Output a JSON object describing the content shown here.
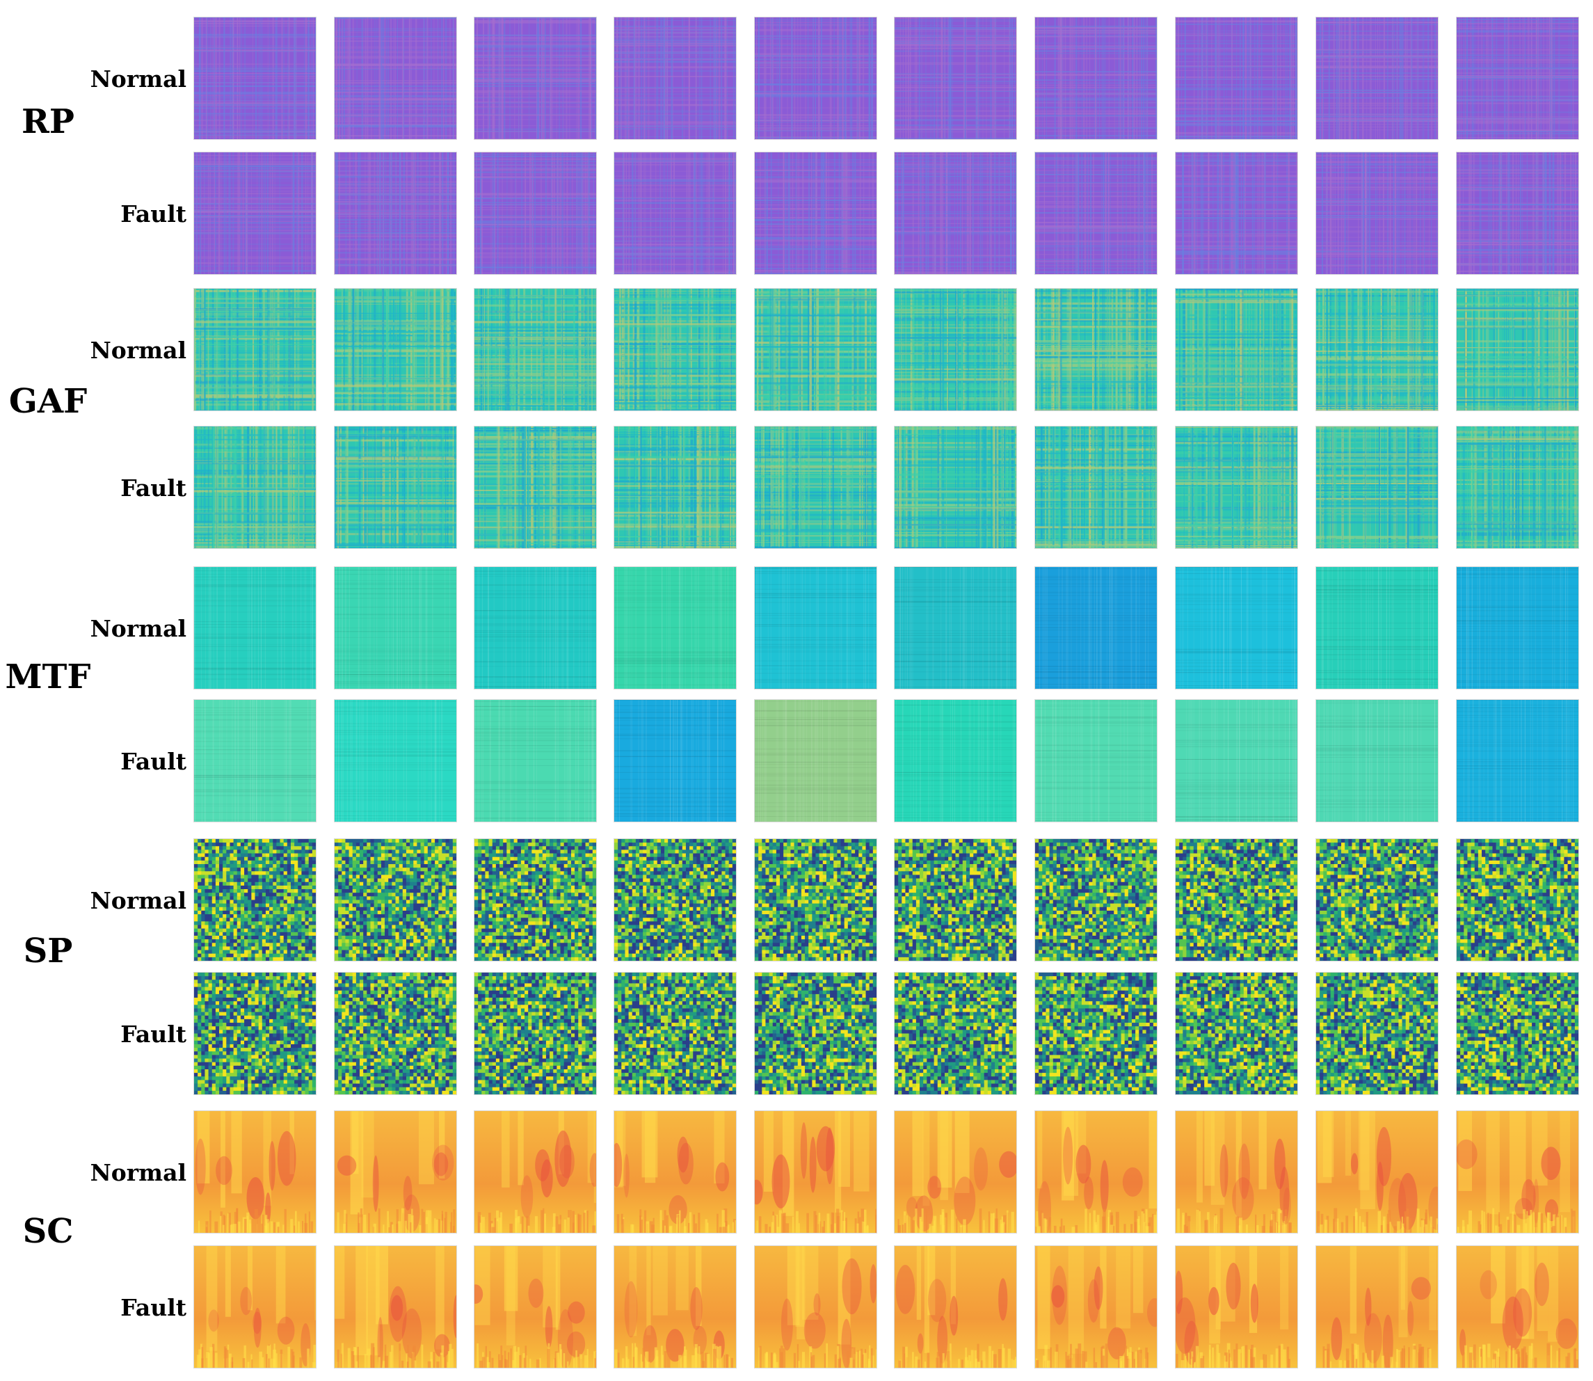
{
  "columns_per_row": 10,
  "methods": [
    {
      "name": "RP",
      "colormap": "purple",
      "texture": "grid",
      "conditions": [
        {
          "label": "Normal",
          "hues": [
            0,
            1,
            2,
            3,
            4,
            5,
            6,
            7,
            8,
            9
          ]
        },
        {
          "label": "Fault",
          "hues": [
            0,
            1,
            2,
            3,
            4,
            5,
            6,
            7,
            8,
            9
          ]
        }
      ]
    },
    {
      "name": "GAF",
      "colormap": "teal-olive",
      "texture": "stripes",
      "conditions": [
        {
          "label": "Normal",
          "hues": [
            0,
            1,
            2,
            3,
            4,
            5,
            6,
            7,
            8,
            9
          ]
        },
        {
          "label": "Fault",
          "hues": [
            0,
            1,
            2,
            3,
            4,
            5,
            6,
            7,
            8,
            9
          ]
        }
      ]
    },
    {
      "name": "MTF",
      "colormap": "cyan-green",
      "texture": "fine",
      "conditions": [
        {
          "label": "Normal",
          "tints": [
            "#27cfbf",
            "#3ad6b3",
            "#22c9c4",
            "#36d6ab",
            "#1fc2d4",
            "#23bfc8",
            "#1a9fdc",
            "#1dc0dc",
            "#27cfb9",
            "#18aedc"
          ]
        },
        {
          "label": "Fault",
          "tints": [
            "#52dcb4",
            "#2bd9c4",
            "#4bdab1",
            "#19aadf",
            "#93cf8c",
            "#27d7b8",
            "#52dbb2",
            "#4fd9b4",
            "#4ed8b3",
            "#1ab1de"
          ]
        }
      ]
    },
    {
      "name": "SP",
      "colormap": "viridis",
      "texture": "pixel",
      "conditions": [
        {
          "label": "Normal",
          "hues": [
            0,
            1,
            2,
            3,
            4,
            5,
            6,
            7,
            8,
            9
          ]
        },
        {
          "label": "Fault",
          "hues": [
            0,
            1,
            2,
            3,
            4,
            5,
            6,
            7,
            8,
            9
          ]
        }
      ]
    },
    {
      "name": "SC",
      "colormap": "orange-yellow",
      "texture": "spectro",
      "conditions": [
        {
          "label": "Normal",
          "hues": [
            0,
            1,
            2,
            3,
            4,
            5,
            6,
            7,
            8,
            9
          ]
        },
        {
          "label": "Fault",
          "hues": [
            0,
            1,
            2,
            3,
            4,
            5,
            6,
            7,
            8,
            9
          ]
        }
      ]
    }
  ],
  "colors": {
    "rp_base": "#8a5ad8",
    "gaf_base": "#29c9b0",
    "mtf_base": "#28cfc0",
    "sp_base": "#1fa56a",
    "sc_base": "#f6a43a"
  }
}
